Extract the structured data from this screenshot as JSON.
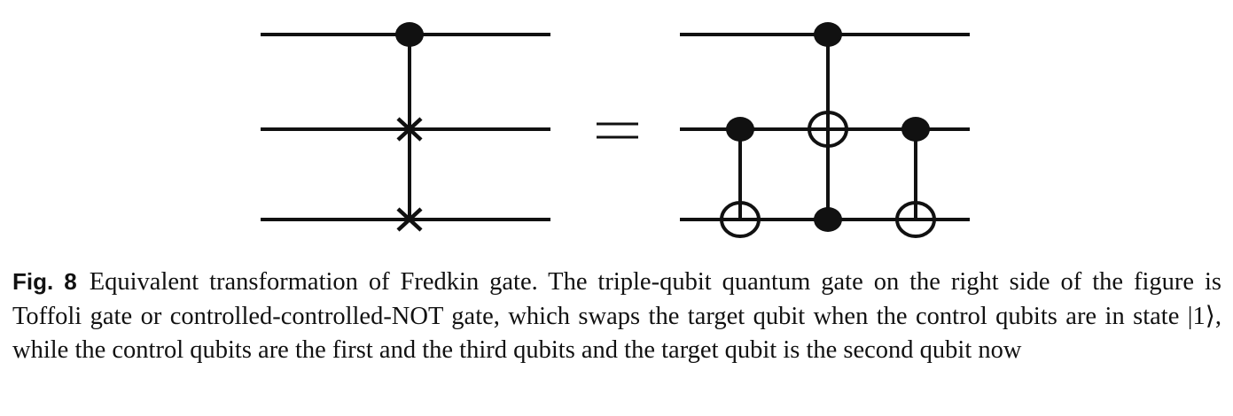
{
  "caption": {
    "label": "Fig. 8",
    "text": "Equivalent transformation of Fredkin gate. The triple-qubit quantum gate on the right side of the figure is Toffoli gate or controlled-controlled-NOT gate, which swaps the target qubit when the control qubits are in state |1⟩, while the control qubits are the first and the third qubits and the target qubit is the second qubit now"
  },
  "circuits": {
    "left": {
      "wires": 3,
      "gates": [
        {
          "type": "fredkin",
          "control": 1,
          "swap": [
            2,
            3
          ]
        }
      ]
    },
    "relation": "=",
    "right": {
      "wires": 3,
      "gates": [
        {
          "type": "cnot",
          "control": 2,
          "target": 3
        },
        {
          "type": "toffoli",
          "controls": [
            1,
            3
          ],
          "target": 2
        },
        {
          "type": "cnot",
          "control": 2,
          "target": 3
        }
      ]
    }
  }
}
